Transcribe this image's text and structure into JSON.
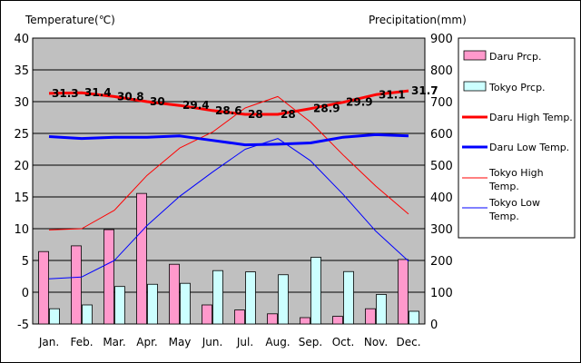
{
  "chart_data": {
    "type": "bar-line",
    "categories": [
      "Jan.",
      "Feb.",
      "Mar.",
      "Apr.",
      "May",
      "Jun.",
      "Jul.",
      "Aug.",
      "Sep.",
      "Oct.",
      "Nov.",
      "Dec."
    ],
    "left_axis": {
      "label": "Temperature(℃)",
      "min": -5,
      "max": 40,
      "step": 5,
      "ticks": [
        "40",
        "35",
        "30",
        "25",
        "20",
        "15",
        "10",
        "5",
        "0",
        "-5"
      ]
    },
    "right_axis": {
      "label": "Precipitation(mm)",
      "min": 0,
      "max": 900,
      "step": 100,
      "ticks": [
        "900",
        "800",
        "700",
        "600",
        "500",
        "400",
        "300",
        "200",
        "100",
        "0"
      ]
    },
    "bar_series": [
      {
        "name": "Daru Prcp.",
        "color": "#ff99cc",
        "values": [
          228,
          246,
          297,
          411,
          188,
          60,
          44,
          32,
          20,
          24,
          48,
          203
        ]
      },
      {
        "name": "Tokyo Prcp.",
        "color": "#ccffff",
        "values": [
          48,
          60,
          118,
          125,
          128,
          168,
          164,
          155,
          210,
          165,
          93,
          40
        ]
      }
    ],
    "line_series": [
      {
        "name": "Daru High Temp.",
        "color": "#ff0000",
        "width": "thick",
        "values": [
          31.3,
          31.4,
          30.8,
          30,
          29.4,
          28.6,
          28,
          28,
          28.9,
          29.9,
          31.1,
          31.7
        ],
        "labels": [
          "31.3",
          "31.4",
          "30.8",
          "30",
          "29.4",
          "28.6",
          "28",
          "28",
          "28.9",
          "29.9",
          "31.1",
          "31.7"
        ]
      },
      {
        "name": "Daru Low Temp.",
        "color": "#0000ff",
        "width": "thick",
        "values": [
          24.5,
          24.2,
          24.4,
          24.4,
          24.6,
          23.9,
          23.2,
          23.3,
          23.5,
          24.4,
          24.8,
          24.6
        ]
      },
      {
        "name": "Tokyo High Temp.",
        "color": "#ff0000",
        "width": "thin",
        "values": [
          9.8,
          10,
          12.9,
          18.4,
          22.7,
          25.2,
          29,
          30.8,
          26.8,
          21.6,
          16.7,
          12.3
        ]
      },
      {
        "name": "Tokyo Low Temp.",
        "color": "#0000ff",
        "width": "thin",
        "values": [
          2.1,
          2.4,
          5,
          10.5,
          15.1,
          18.9,
          22.5,
          24.2,
          20.7,
          15.4,
          9.6,
          4.9
        ]
      }
    ],
    "legend": {
      "placement": "right",
      "items": [
        {
          "label": "Daru Prcp."
        },
        {
          "label": "Tokyo Prcp."
        },
        {
          "label": "Daru High Temp."
        },
        {
          "label": "Daru Low Temp."
        },
        {
          "label": "Tokyo High Temp."
        },
        {
          "label": "Tokyo Low Temp."
        }
      ]
    },
    "plot_background": "#c0c0c0",
    "grid": true
  }
}
